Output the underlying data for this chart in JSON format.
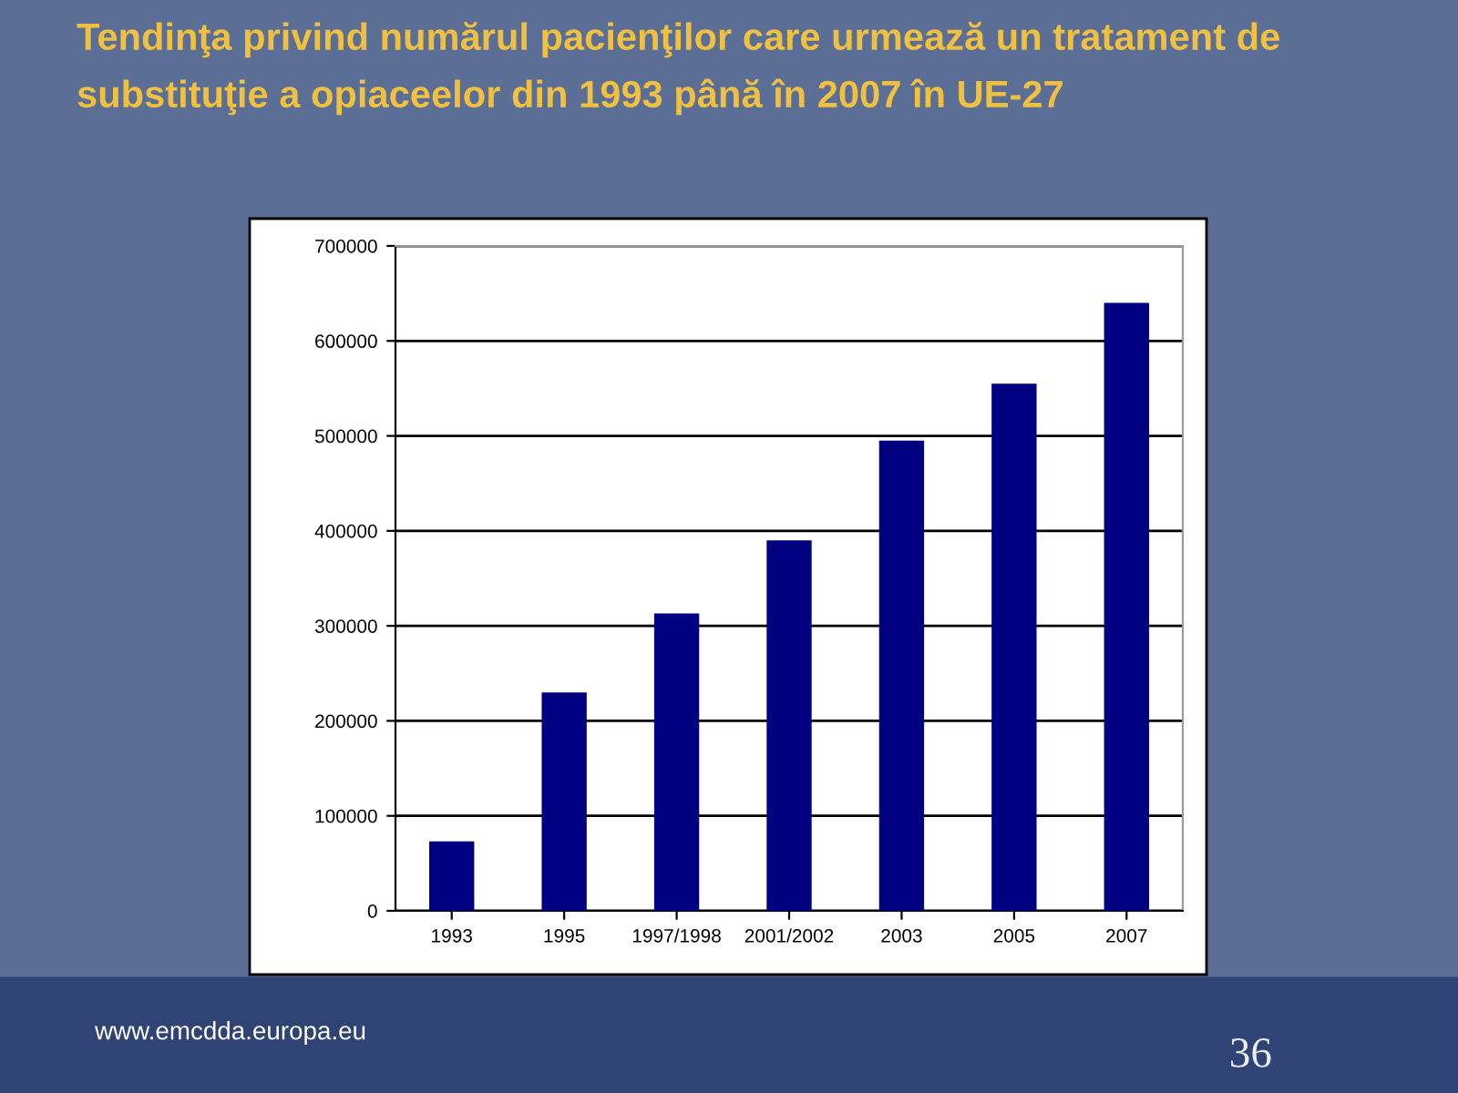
{
  "chart_data": {
    "type": "bar",
    "title": "Tendinţa privind numărul pacienţilor care urmează un tratament de substituţie a opiaceelor din 1993 până în 2007 în UE-27",
    "categories": [
      "1993",
      "1995",
      "1997/1998",
      "2001/2002",
      "2003",
      "2005",
      "2007"
    ],
    "values": [
      73000,
      230000,
      313000,
      390000,
      495000,
      555000,
      640000
    ],
    "color": "#000080",
    "ylim": [
      0,
      700000
    ],
    "yticks": [
      0,
      100000,
      200000,
      300000,
      400000,
      500000,
      600000,
      700000
    ],
    "grid": "y",
    "annotations": [
      "www.emcdda.europa.eu",
      "36"
    ]
  }
}
